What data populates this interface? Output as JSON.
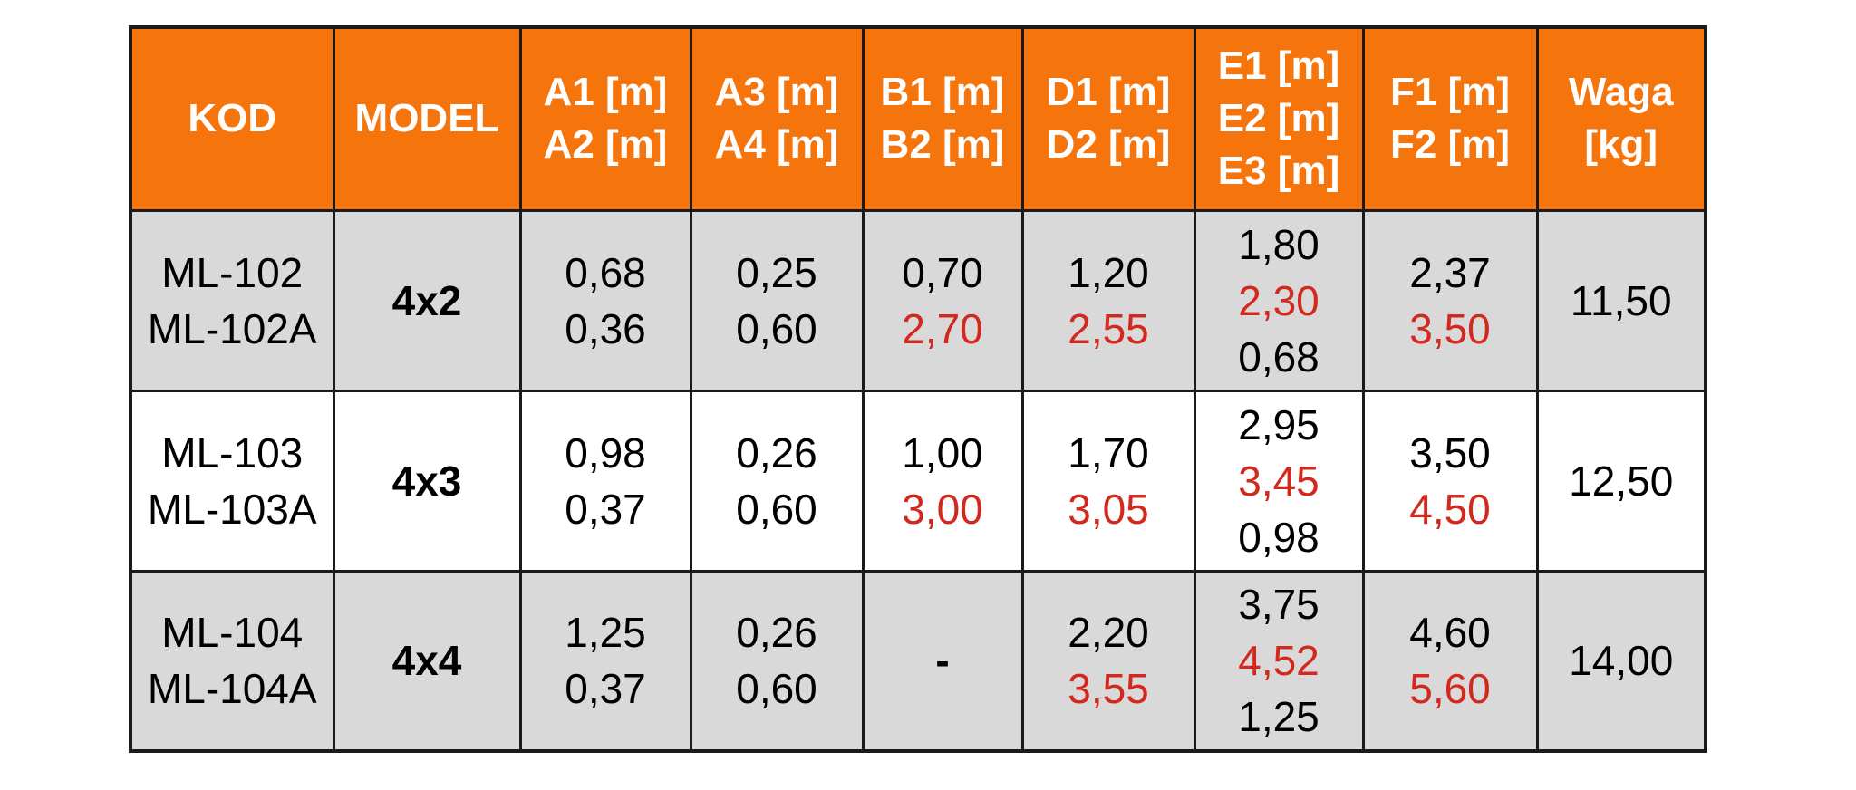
{
  "colors": {
    "header_bg": "#F6740C",
    "header_text": "#FFFFFF",
    "row_alt_bg": "#D9D9D9",
    "row_bg": "#FFFFFF",
    "text": "#000000",
    "red": "#D2281E",
    "border": "#1A1A1A"
  },
  "table": {
    "header": [
      {
        "name": "kod",
        "lines": [
          "KOD"
        ]
      },
      {
        "name": "model",
        "lines": [
          "MODEL"
        ]
      },
      {
        "name": "a1-a2",
        "lines": [
          "A1 [m]",
          "A2 [m]"
        ]
      },
      {
        "name": "a3-a4",
        "lines": [
          "A3 [m]",
          "A4 [m]"
        ]
      },
      {
        "name": "b1-b2",
        "lines": [
          "B1 [m]",
          "B2 [m]"
        ]
      },
      {
        "name": "d1-d2",
        "lines": [
          "D1 [m]",
          "D2 [m]"
        ]
      },
      {
        "name": "e1-e2-e3",
        "lines": [
          "E1 [m]",
          "E2 [m]",
          "E3 [m]"
        ]
      },
      {
        "name": "f1-f2",
        "lines": [
          "F1 [m]",
          "F2 [m]"
        ]
      },
      {
        "name": "waga",
        "lines": [
          "Waga",
          "[kg]"
        ]
      }
    ],
    "rows": [
      {
        "cells": [
          {
            "lines": [
              {
                "t": "ML-102"
              },
              {
                "t": "ML-102A"
              }
            ]
          },
          {
            "lines": [
              {
                "t": "4x2",
                "bold": true
              }
            ]
          },
          {
            "lines": [
              {
                "t": "0,68"
              },
              {
                "t": "0,36"
              }
            ]
          },
          {
            "lines": [
              {
                "t": "0,25"
              },
              {
                "t": "0,60"
              }
            ]
          },
          {
            "lines": [
              {
                "t": "0,70"
              },
              {
                "t": "2,70",
                "red": true
              }
            ]
          },
          {
            "lines": [
              {
                "t": "1,20"
              },
              {
                "t": "2,55",
                "red": true
              }
            ]
          },
          {
            "lines": [
              {
                "t": "1,80"
              },
              {
                "t": "2,30",
                "red": true
              },
              {
                "t": "0,68"
              }
            ]
          },
          {
            "lines": [
              {
                "t": "2,37"
              },
              {
                "t": "3,50",
                "red": true
              }
            ]
          },
          {
            "lines": [
              {
                "t": "11,50"
              }
            ]
          }
        ]
      },
      {
        "cells": [
          {
            "lines": [
              {
                "t": "ML-103"
              },
              {
                "t": "ML-103A"
              }
            ]
          },
          {
            "lines": [
              {
                "t": "4x3",
                "bold": true
              }
            ]
          },
          {
            "lines": [
              {
                "t": "0,98"
              },
              {
                "t": "0,37"
              }
            ]
          },
          {
            "lines": [
              {
                "t": "0,26"
              },
              {
                "t": "0,60"
              }
            ]
          },
          {
            "lines": [
              {
                "t": "1,00"
              },
              {
                "t": "3,00",
                "red": true
              }
            ]
          },
          {
            "lines": [
              {
                "t": "1,70"
              },
              {
                "t": "3,05",
                "red": true
              }
            ]
          },
          {
            "lines": [
              {
                "t": "2,95"
              },
              {
                "t": "3,45",
                "red": true
              },
              {
                "t": "0,98"
              }
            ]
          },
          {
            "lines": [
              {
                "t": "3,50"
              },
              {
                "t": "4,50",
                "red": true
              }
            ]
          },
          {
            "lines": [
              {
                "t": "12,50"
              }
            ]
          }
        ]
      },
      {
        "cells": [
          {
            "lines": [
              {
                "t": "ML-104"
              },
              {
                "t": "ML-104A"
              }
            ]
          },
          {
            "lines": [
              {
                "t": "4x4",
                "bold": true
              }
            ]
          },
          {
            "lines": [
              {
                "t": "1,25"
              },
              {
                "t": "0,37"
              }
            ]
          },
          {
            "lines": [
              {
                "t": "0,26"
              },
              {
                "t": "0,60"
              }
            ]
          },
          {
            "lines": [
              {
                "t": "-",
                "bold": true
              }
            ]
          },
          {
            "lines": [
              {
                "t": "2,20"
              },
              {
                "t": "3,55",
                "red": true
              }
            ]
          },
          {
            "lines": [
              {
                "t": "3,75"
              },
              {
                "t": "4,52",
                "red": true
              },
              {
                "t": "1,25"
              }
            ]
          },
          {
            "lines": [
              {
                "t": "4,60"
              },
              {
                "t": "5,60",
                "red": true
              }
            ]
          },
          {
            "lines": [
              {
                "t": "14,00"
              }
            ]
          }
        ]
      }
    ]
  }
}
